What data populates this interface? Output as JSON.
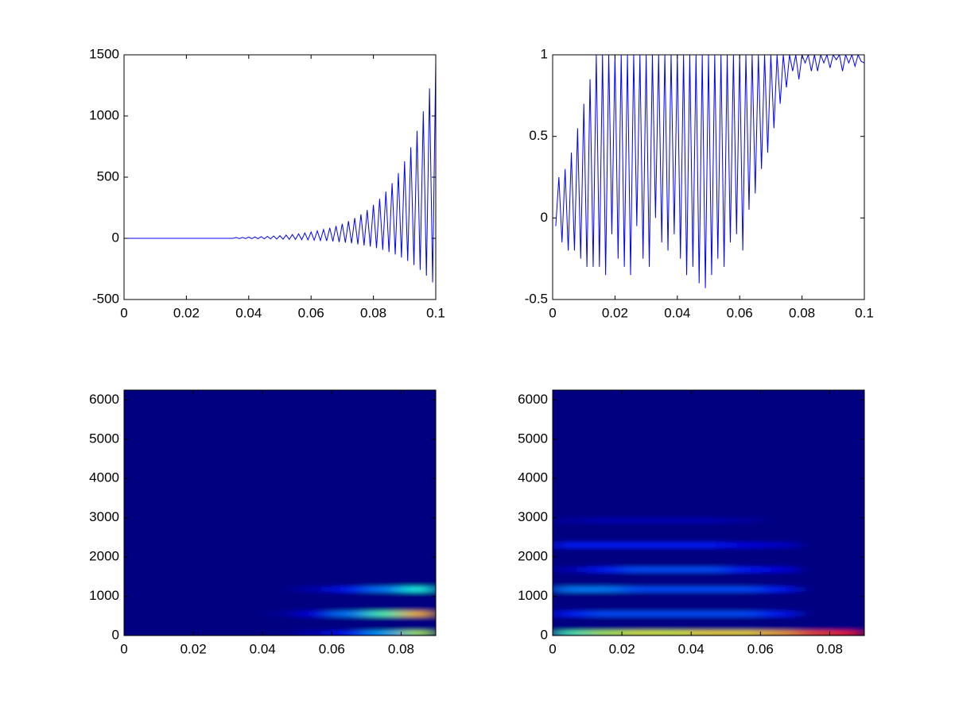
{
  "chart_data": [
    {
      "type": "line",
      "xlim": [
        0,
        0.1
      ],
      "ylim": [
        -500,
        1500
      ],
      "xticks": [
        0,
        0.02,
        0.04,
        0.06,
        0.08,
        0.1
      ],
      "yticks": [
        -500,
        0,
        500,
        1000,
        1500
      ],
      "series": [
        {
          "color": "#0000ff",
          "x": [
            0,
            0.035,
            0.036,
            0.037,
            0.038,
            0.039,
            0.04,
            0.041,
            0.042,
            0.043,
            0.044,
            0.045,
            0.046,
            0.047,
            0.048,
            0.049,
            0.05,
            0.051,
            0.052,
            0.053,
            0.054,
            0.055,
            0.056,
            0.057,
            0.058,
            0.059,
            0.06,
            0.061,
            0.062,
            0.063,
            0.064,
            0.065,
            0.066,
            0.067,
            0.068,
            0.069,
            0.07,
            0.071,
            0.072,
            0.073,
            0.074,
            0.075,
            0.076,
            0.077,
            0.078,
            0.079,
            0.08,
            0.081,
            0.082,
            0.083,
            0.084,
            0.085,
            0.086,
            0.087,
            0.088,
            0.089,
            0.09,
            0.091,
            0.092,
            0.093,
            0.094,
            0.095,
            0.096,
            0.097,
            0.098,
            0.099,
            0.1
          ],
          "values": [
            0,
            0,
            7,
            -2,
            8,
            -2,
            10,
            -3,
            12,
            -3,
            14,
            -4,
            16,
            -5,
            19,
            -6,
            22,
            -7,
            27,
            -8,
            31,
            -9,
            37,
            -11,
            44,
            -13,
            52,
            -15,
            61,
            -18,
            72,
            -21,
            85,
            -25,
            101,
            -30,
            119,
            -35,
            141,
            -41,
            166,
            -49,
            196,
            -58,
            232,
            -68,
            274,
            -80,
            323,
            -95,
            382,
            -112,
            451,
            -132,
            533,
            -157,
            630,
            -185,
            744,
            -218,
            879,
            -258,
            1038,
            -305,
            1226,
            -360,
            1450
          ]
        }
      ]
    },
    {
      "type": "line",
      "xlim": [
        0,
        0.1
      ],
      "ylim": [
        -0.5,
        1
      ],
      "xticks": [
        0,
        0.02,
        0.04,
        0.06,
        0.08,
        0.1
      ],
      "yticks": [
        -0.5,
        0,
        0.5,
        1
      ],
      "series": [
        {
          "color": "#0000ff",
          "x": [
            0.001,
            0.002,
            0.003,
            0.004,
            0.005,
            0.006,
            0.007,
            0.008,
            0.009,
            0.01,
            0.011,
            0.012,
            0.013,
            0.014,
            0.015,
            0.016,
            0.017,
            0.018,
            0.019,
            0.02,
            0.021,
            0.022,
            0.023,
            0.024,
            0.025,
            0.026,
            0.027,
            0.028,
            0.029,
            0.03,
            0.031,
            0.032,
            0.033,
            0.034,
            0.035,
            0.036,
            0.037,
            0.038,
            0.039,
            0.04,
            0.041,
            0.042,
            0.043,
            0.044,
            0.045,
            0.046,
            0.047,
            0.048,
            0.049,
            0.05,
            0.051,
            0.052,
            0.053,
            0.054,
            0.055,
            0.056,
            0.057,
            0.058,
            0.059,
            0.06,
            0.061,
            0.062,
            0.063,
            0.064,
            0.065,
            0.066,
            0.067,
            0.068,
            0.069,
            0.07,
            0.071,
            0.072,
            0.073,
            0.074,
            0.075,
            0.076,
            0.077,
            0.078,
            0.079,
            0.08,
            0.081,
            0.082,
            0.083,
            0.084,
            0.085,
            0.086,
            0.087,
            0.088,
            0.089,
            0.09,
            0.091,
            0.092,
            0.093,
            0.094,
            0.095,
            0.096,
            0.097,
            0.098,
            0.099,
            0.1
          ],
          "values": [
            -0.05,
            0.25,
            -0.15,
            0.3,
            -0.2,
            0.4,
            -0.2,
            0.55,
            -0.25,
            0.7,
            -0.3,
            0.85,
            -0.3,
            1,
            -0.3,
            1,
            -0.35,
            1,
            -0.1,
            1,
            -0.25,
            1,
            -0.3,
            1,
            -0.35,
            1,
            -0.05,
            1,
            -0.25,
            1,
            -0.3,
            1,
            0,
            1,
            -0.15,
            1,
            -0.2,
            1,
            -0.1,
            1,
            -0.25,
            1,
            -0.35,
            1,
            -0.3,
            1,
            -0.4,
            1,
            -0.43,
            1,
            -0.35,
            1,
            -0.25,
            1,
            -0.3,
            1,
            -0.15,
            1,
            -0.1,
            1,
            -0.2,
            1,
            0.05,
            1,
            0.15,
            1,
            0.3,
            1,
            0.4,
            1,
            0.55,
            1,
            0.7,
            1,
            0.8,
            1,
            0.9,
            1,
            0.85,
            1,
            0.95,
            1,
            0.9,
            1,
            0.9,
            1,
            0.95,
            1,
            0.92,
            1,
            0.97,
            1,
            0.9,
            1,
            0.95,
            1,
            0.93,
            1,
            0.96,
            0.95
          ]
        }
      ]
    },
    {
      "type": "heatmap",
      "colormap": "jet",
      "zlim": [
        0,
        1
      ],
      "xlim": [
        0,
        0.09
      ],
      "ylim": [
        0,
        6250
      ],
      "xticks": [
        0,
        0.02,
        0.04,
        0.06,
        0.08
      ],
      "yticks": [
        0,
        1000,
        2000,
        3000,
        4000,
        5000,
        6000
      ],
      "xbins": [
        0,
        0.01,
        0.02,
        0.03,
        0.04,
        0.05,
        0.06,
        0.07,
        0.08,
        0.09
      ],
      "ybins": [
        0,
        125,
        250,
        375,
        500,
        625,
        750,
        875,
        1000,
        1125,
        1250,
        1375,
        1500,
        1625,
        1750,
        1875,
        2000,
        2125,
        2250,
        2375,
        2500,
        2625,
        2750,
        2875,
        3000
      ],
      "z": [
        [
          0,
          0,
          0,
          0,
          0,
          0.05,
          0.15,
          0.3,
          0.55
        ],
        [
          0,
          0,
          0,
          0,
          0,
          0,
          0,
          0,
          0
        ],
        [
          0,
          0,
          0,
          0,
          0,
          0,
          0,
          0,
          0
        ],
        [
          0,
          0,
          0,
          0,
          0,
          0,
          0,
          0,
          0
        ],
        [
          0,
          0,
          0,
          0,
          0.02,
          0.1,
          0.25,
          0.45,
          0.7
        ],
        [
          0,
          0,
          0,
          0,
          0,
          0,
          0,
          0,
          0
        ],
        [
          0,
          0,
          0,
          0,
          0,
          0,
          0,
          0,
          0
        ],
        [
          0,
          0,
          0,
          0,
          0,
          0,
          0,
          0,
          0
        ],
        [
          0,
          0,
          0,
          0,
          0,
          0,
          0,
          0,
          0
        ],
        [
          0,
          0,
          0,
          0,
          0,
          0.05,
          0.15,
          0.25,
          0.4
        ],
        [
          0,
          0,
          0,
          0,
          0,
          0,
          0,
          0,
          0
        ],
        [
          0,
          0,
          0,
          0,
          0,
          0,
          0,
          0,
          0
        ],
        [
          0,
          0,
          0,
          0,
          0,
          0,
          0,
          0,
          0
        ],
        [
          0,
          0,
          0,
          0,
          0,
          0,
          0,
          0,
          0
        ],
        [
          0,
          0,
          0,
          0,
          0,
          0,
          0,
          0,
          0
        ],
        [
          0,
          0,
          0,
          0,
          0,
          0,
          0,
          0,
          0
        ],
        [
          0,
          0,
          0,
          0,
          0,
          0,
          0,
          0,
          0
        ],
        [
          0,
          0,
          0,
          0,
          0,
          0,
          0,
          0,
          0
        ],
        [
          0,
          0,
          0,
          0,
          0,
          0,
          0,
          0,
          0
        ],
        [
          0,
          0,
          0,
          0,
          0,
          0,
          0,
          0,
          0
        ],
        [
          0,
          0,
          0,
          0,
          0,
          0,
          0,
          0,
          0
        ],
        [
          0,
          0,
          0,
          0,
          0,
          0,
          0,
          0,
          0
        ],
        [
          0,
          0,
          0,
          0,
          0,
          0,
          0,
          0,
          0
        ],
        [
          0,
          0,
          0,
          0,
          0,
          0,
          0,
          0,
          0
        ]
      ]
    },
    {
      "type": "heatmap",
      "colormap": "jet",
      "zlim": [
        0,
        1
      ],
      "xlim": [
        0,
        0.09
      ],
      "ylim": [
        0,
        6250
      ],
      "xticks": [
        0,
        0.02,
        0.04,
        0.06,
        0.08
      ],
      "yticks": [
        0,
        1000,
        2000,
        3000,
        4000,
        5000,
        6000
      ],
      "xbins": [
        0,
        0.01,
        0.02,
        0.03,
        0.04,
        0.05,
        0.06,
        0.07,
        0.08,
        0.09
      ],
      "ybins": [
        0,
        125,
        250,
        375,
        500,
        625,
        750,
        875,
        1000,
        1125,
        1250,
        1375,
        1500,
        1625,
        1750,
        1875,
        2000,
        2125,
        2250,
        2375,
        2500,
        2625,
        2750,
        2875,
        3000
      ],
      "z": [
        [
          0.45,
          0.55,
          0.6,
          0.6,
          0.65,
          0.65,
          0.7,
          0.8,
          0.85
        ],
        [
          0,
          0,
          0,
          0,
          0,
          0,
          0,
          0,
          0
        ],
        [
          0,
          0,
          0,
          0,
          0,
          0,
          0,
          0,
          0
        ],
        [
          0,
          0,
          0,
          0,
          0,
          0,
          0,
          0,
          0
        ],
        [
          0.15,
          0.2,
          0.2,
          0.2,
          0.2,
          0.2,
          0.15,
          0,
          0
        ],
        [
          0,
          0,
          0,
          0,
          0,
          0,
          0,
          0,
          0
        ],
        [
          0,
          0,
          0,
          0,
          0,
          0,
          0,
          0,
          0
        ],
        [
          0,
          0,
          0,
          0,
          0,
          0,
          0,
          0,
          0
        ],
        [
          0,
          0,
          0,
          0,
          0,
          0,
          0,
          0,
          0
        ],
        [
          0.25,
          0.25,
          0.2,
          0.2,
          0.2,
          0.2,
          0.15,
          0,
          0
        ],
        [
          0,
          0,
          0,
          0,
          0,
          0,
          0,
          0,
          0
        ],
        [
          0,
          0,
          0,
          0,
          0,
          0,
          0,
          0,
          0
        ],
        [
          0,
          0,
          0,
          0,
          0,
          0,
          0,
          0,
          0
        ],
        [
          0.05,
          0.15,
          0.2,
          0.2,
          0.2,
          0.15,
          0.1,
          0,
          0
        ],
        [
          0,
          0,
          0,
          0,
          0,
          0,
          0,
          0,
          0
        ],
        [
          0,
          0,
          0,
          0,
          0,
          0,
          0,
          0,
          0
        ],
        [
          0,
          0,
          0,
          0,
          0,
          0,
          0,
          0,
          0
        ],
        [
          0,
          0,
          0,
          0,
          0,
          0,
          0,
          0,
          0
        ],
        [
          0.15,
          0.15,
          0.15,
          0.15,
          0.15,
          0.1,
          0.08,
          0,
          0
        ],
        [
          0,
          0,
          0,
          0,
          0,
          0,
          0,
          0,
          0
        ],
        [
          0,
          0,
          0,
          0,
          0,
          0,
          0,
          0,
          0
        ],
        [
          0,
          0,
          0,
          0,
          0,
          0,
          0,
          0,
          0
        ],
        [
          0,
          0,
          0,
          0,
          0,
          0,
          0,
          0,
          0
        ],
        [
          0.03,
          0.05,
          0.05,
          0.05,
          0.05,
          0.03,
          0,
          0,
          0
        ]
      ]
    }
  ]
}
